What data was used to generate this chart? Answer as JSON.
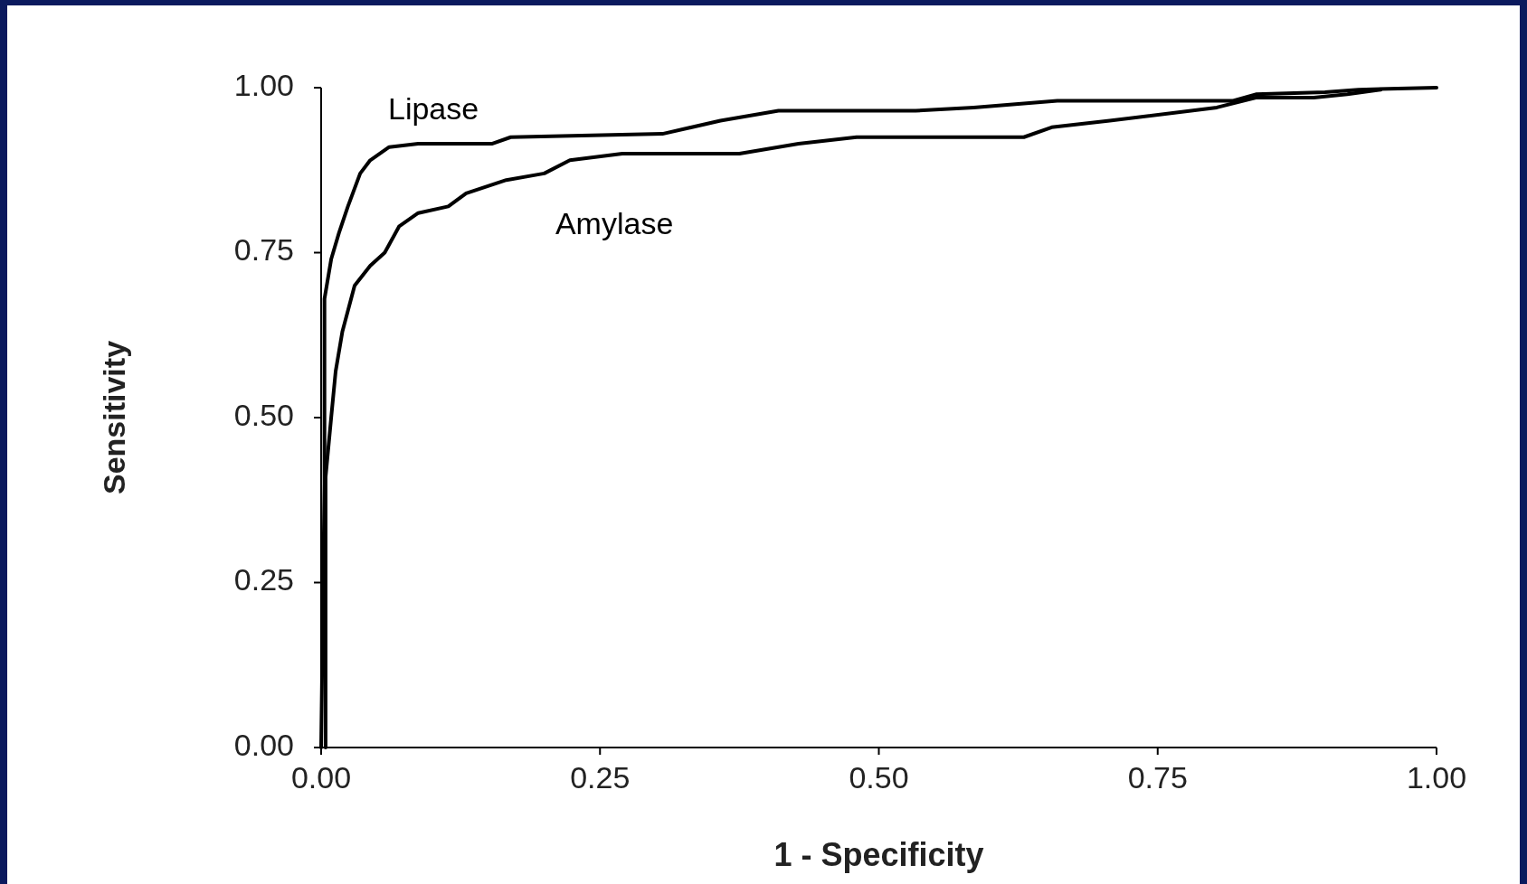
{
  "chart_data": {
    "type": "line",
    "xlabel": "1 - Specificity",
    "ylabel": "Sensitivity",
    "xlim": [
      0,
      1
    ],
    "ylim": [
      0,
      1
    ],
    "xticks": [
      {
        "value": 0,
        "label": "0.00"
      },
      {
        "value": 0.25,
        "label": "0.25"
      },
      {
        "value": 0.5,
        "label": "0.50"
      },
      {
        "value": 0.75,
        "label": "0.75"
      },
      {
        "value": 1,
        "label": "1.00"
      }
    ],
    "yticks": [
      {
        "value": 0,
        "label": "0.00"
      },
      {
        "value": 0.25,
        "label": "0.25"
      },
      {
        "value": 0.5,
        "label": "0.50"
      },
      {
        "value": 0.75,
        "label": "0.75"
      },
      {
        "value": 1,
        "label": "1.00"
      }
    ],
    "grid": false,
    "marker": "none",
    "line_style": "solid",
    "series": [
      {
        "name": "Lipase",
        "color": "#000000",
        "x": [
          0,
          0.003,
          0.003,
          0.009,
          0.016,
          0.024,
          0.035,
          0.044,
          0.061,
          0.087,
          0.153,
          0.17,
          0.306,
          0.358,
          0.41,
          0.533,
          0.585,
          0.66,
          0.817,
          0.838,
          0.9,
          0.93,
          1
        ],
        "values": [
          0,
          0.4,
          0.68,
          0.74,
          0.78,
          0.82,
          0.87,
          0.89,
          0.91,
          0.915,
          0.915,
          0.925,
          0.93,
          0.95,
          0.965,
          0.965,
          0.97,
          0.98,
          0.98,
          0.99,
          0.993,
          0.997,
          1
        ]
      },
      {
        "name": "Amylase",
        "color": "#000000",
        "x": [
          0.004,
          0.004,
          0.009,
          0.013,
          0.019,
          0.03,
          0.044,
          0.057,
          0.07,
          0.087,
          0.114,
          0.13,
          0.166,
          0.2,
          0.223,
          0.27,
          0.375,
          0.428,
          0.48,
          0.63,
          0.655,
          0.707,
          0.803,
          0.838,
          0.89,
          0.92,
          0.95
        ],
        "values": [
          0,
          0.41,
          0.5,
          0.57,
          0.63,
          0.7,
          0.73,
          0.75,
          0.79,
          0.81,
          0.82,
          0.84,
          0.86,
          0.87,
          0.89,
          0.9,
          0.9,
          0.915,
          0.925,
          0.925,
          0.94,
          0.95,
          0.97,
          0.985,
          0.985,
          0.99,
          0.997
        ]
      }
    ]
  }
}
